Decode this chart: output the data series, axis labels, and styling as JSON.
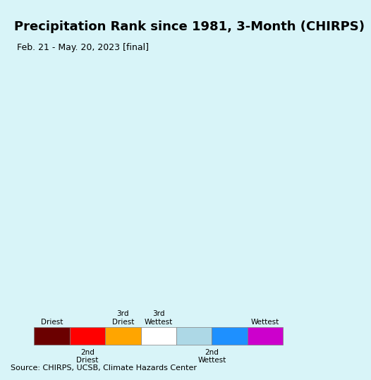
{
  "title": "Precipitation Rank since 1981, 3-Month (CHIRPS)",
  "subtitle": "Feb. 21 - May. 20, 2023 [final]",
  "source": "Source: CHIRPS, UCSB, Climate Hazards Center",
  "background_color": "#d8f4f8",
  "legend_bg_color": "#e8e8e8",
  "legend_colors": [
    "#6b0000",
    "#ff0000",
    "#ffa500",
    "#ffffff",
    "#add8e6",
    "#1e90ff",
    "#cc00cc"
  ],
  "legend_labels_top": [
    "Driest",
    "",
    "3rd\nDriest",
    "3rd\nWettest",
    "",
    "Wettest"
  ],
  "legend_labels_bottom": [
    "",
    "2nd\nDriest",
    "",
    "",
    "2nd\nWettest",
    ""
  ],
  "map_bg": "#d8f4f8",
  "title_fontsize": 13,
  "subtitle_fontsize": 9,
  "source_fontsize": 8
}
